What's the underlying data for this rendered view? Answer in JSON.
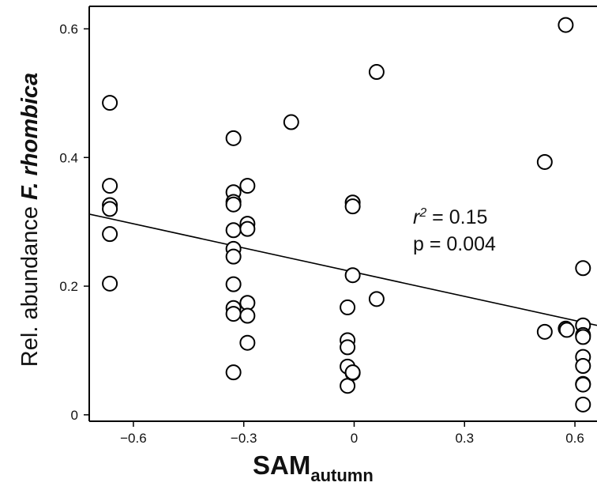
{
  "chart_data": {
    "type": "scatter",
    "title": "",
    "xlabel": {
      "main": "SAM",
      "sub": "autumn"
    },
    "ylabel": {
      "prefix": "Rel. abundance ",
      "emphasis": "F. rhombica"
    },
    "xlim": [
      -0.72,
      0.66
    ],
    "ylim": [
      -0.01,
      0.635
    ],
    "x_ticks": [
      -0.6,
      -0.3,
      0,
      0.3,
      0.6
    ],
    "x_tick_labels": [
      "−0.6",
      "−0.3",
      "0",
      "0.3",
      "0.6"
    ],
    "y_ticks": [
      0,
      0.2,
      0.4,
      0.6
    ],
    "y_tick_labels": [
      "0",
      "0.2",
      "0.4",
      "0.6"
    ],
    "grid": false,
    "legend": null,
    "points": [
      {
        "x": -0.664,
        "y": 0.485
      },
      {
        "x": -0.664,
        "y": 0.356
      },
      {
        "x": -0.664,
        "y": 0.326
      },
      {
        "x": -0.664,
        "y": 0.32
      },
      {
        "x": -0.664,
        "y": 0.281
      },
      {
        "x": -0.664,
        "y": 0.204
      },
      {
        "x": -0.328,
        "y": 0.43
      },
      {
        "x": -0.328,
        "y": 0.346
      },
      {
        "x": -0.328,
        "y": 0.331
      },
      {
        "x": -0.328,
        "y": 0.327
      },
      {
        "x": -0.328,
        "y": 0.287
      },
      {
        "x": -0.328,
        "y": 0.258
      },
      {
        "x": -0.328,
        "y": 0.246
      },
      {
        "x": -0.328,
        "y": 0.203
      },
      {
        "x": -0.328,
        "y": 0.166
      },
      {
        "x": -0.328,
        "y": 0.157
      },
      {
        "x": -0.328,
        "y": 0.066
      },
      {
        "x": -0.29,
        "y": 0.356
      },
      {
        "x": -0.29,
        "y": 0.297
      },
      {
        "x": -0.29,
        "y": 0.289
      },
      {
        "x": -0.29,
        "y": 0.174
      },
      {
        "x": -0.29,
        "y": 0.154
      },
      {
        "x": -0.29,
        "y": 0.112
      },
      {
        "x": -0.171,
        "y": 0.455
      },
      {
        "x": -0.018,
        "y": 0.167
      },
      {
        "x": -0.018,
        "y": 0.116
      },
      {
        "x": -0.018,
        "y": 0.105
      },
      {
        "x": -0.018,
        "y": 0.075
      },
      {
        "x": -0.018,
        "y": 0.045
      },
      {
        "x": -0.004,
        "y": 0.33
      },
      {
        "x": -0.004,
        "y": 0.324
      },
      {
        "x": -0.004,
        "y": 0.065
      },
      {
        "x": -0.004,
        "y": 0.066
      },
      {
        "x": -0.004,
        "y": 0.217
      },
      {
        "x": 0.061,
        "y": 0.533
      },
      {
        "x": 0.061,
        "y": 0.18
      },
      {
        "x": 0.518,
        "y": 0.393
      },
      {
        "x": 0.518,
        "y": 0.129
      },
      {
        "x": 0.575,
        "y": 0.606
      },
      {
        "x": 0.575,
        "y": 0.134
      },
      {
        "x": 0.578,
        "y": 0.132
      },
      {
        "x": 0.622,
        "y": 0.228
      },
      {
        "x": 0.622,
        "y": 0.139
      },
      {
        "x": 0.622,
        "y": 0.124
      },
      {
        "x": 0.622,
        "y": 0.121
      },
      {
        "x": 0.622,
        "y": 0.09
      },
      {
        "x": 0.622,
        "y": 0.076
      },
      {
        "x": 0.622,
        "y": 0.048
      },
      {
        "x": 0.622,
        "y": 0.047
      },
      {
        "x": 0.622,
        "y": 0.016
      }
    ],
    "trendline": {
      "x": [
        -0.72,
        0.66
      ],
      "y": [
        0.312,
        0.139
      ]
    },
    "annotation": {
      "r2_prefix": "r",
      "r2_exponent": "2",
      "r2_value": " = 0.15",
      "p_text": "p = 0.004"
    }
  }
}
